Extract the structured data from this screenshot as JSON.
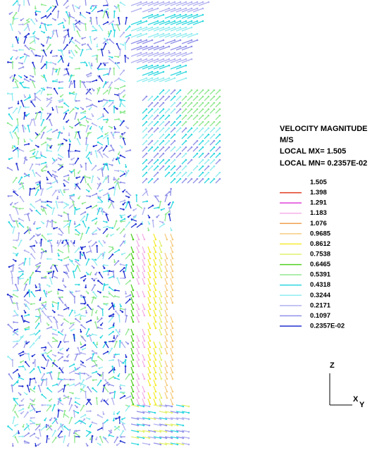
{
  "legend": {
    "title": "VELOCITY MAGNITUDE",
    "units": "M/S",
    "local_max": "LOCAL MX=  1.505",
    "local_min": "LOCAL MN= 0.2357E-02",
    "top_label": "1.505",
    "entries": [
      {
        "label": "1.398",
        "color": "#e03a1c"
      },
      {
        "label": "1.291",
        "color": "#e040d8"
      },
      {
        "label": "1.183",
        "color": "#f4b0e8"
      },
      {
        "label": "1.076",
        "color": "#f0a050"
      },
      {
        "label": "0.9685",
        "color": "#f6cc80"
      },
      {
        "label": "0.8612",
        "color": "#f4ec30"
      },
      {
        "label": "0.7538",
        "color": "#e4f070"
      },
      {
        "label": "0.6465",
        "color": "#50d020"
      },
      {
        "label": "0.5391",
        "color": "#90e890"
      },
      {
        "label": "0.4318",
        "color": "#30d8e0"
      },
      {
        "label": "0.3244",
        "color": "#90ecf0"
      },
      {
        "label": "0.2171",
        "color": "#b0b0f0"
      },
      {
        "label": "0.1097",
        "color": "#9090e8"
      },
      {
        "label": "0.2357E-02",
        "color": "#2030d0"
      }
    ]
  },
  "axes": {
    "z": "Z",
    "x": "X",
    "y": "Y"
  }
}
